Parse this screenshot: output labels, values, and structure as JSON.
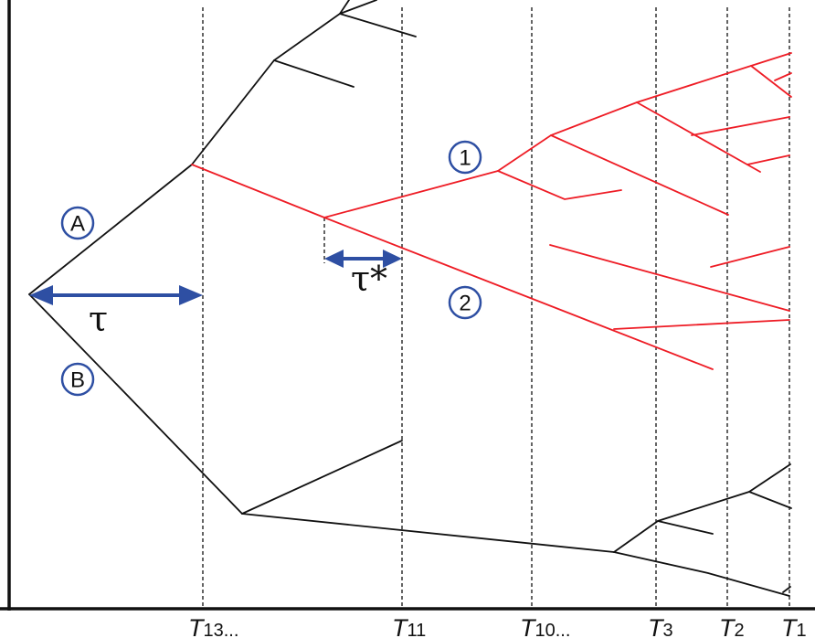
{
  "labels": {
    "lineage_a": "A",
    "lineage_b": "B",
    "branch_1": "1",
    "branch_2": "2",
    "tau": "τ",
    "tau_star": "τ*"
  },
  "time_axis": [
    {
      "main": "T",
      "sub": "13..."
    },
    {
      "main": "T",
      "sub": "11"
    },
    {
      "main": "T",
      "sub": "10..."
    },
    {
      "main": "T",
      "sub": "3"
    },
    {
      "main": "T",
      "sub": "2"
    },
    {
      "main": "T",
      "sub": "1"
    }
  ],
  "colors": {
    "black_branches": "#111111",
    "red_clade": "#ee1c25",
    "annotation_blue": "#2e4fa3"
  }
}
